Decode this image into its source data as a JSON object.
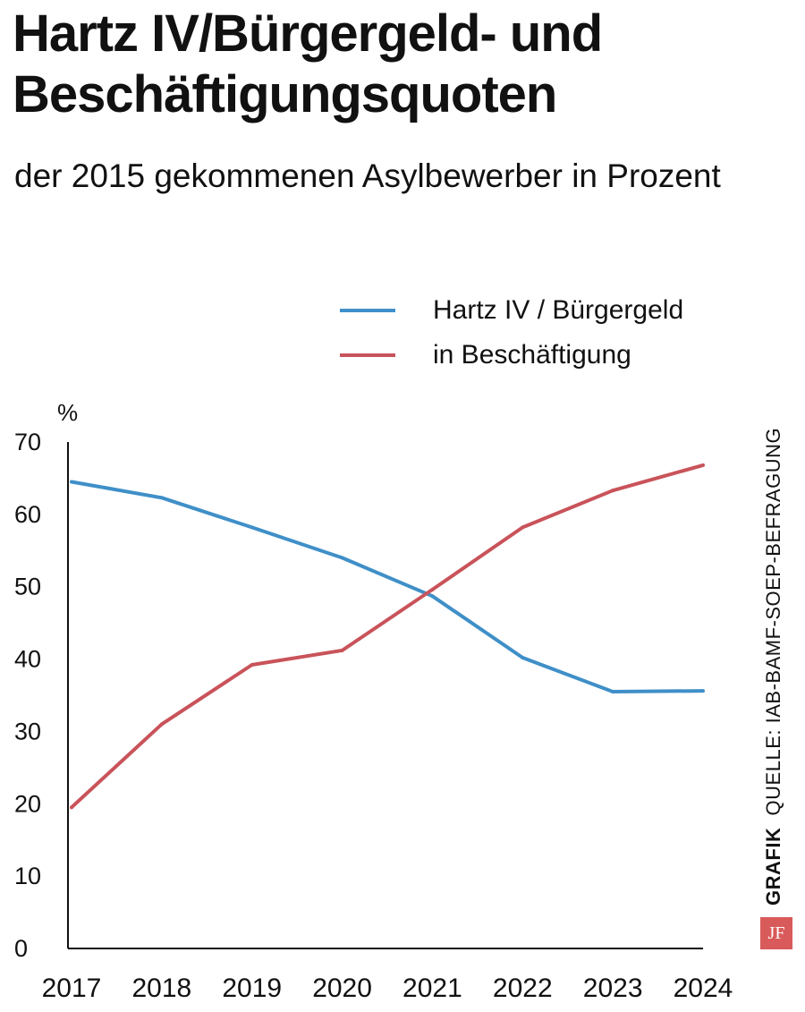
{
  "header": {
    "title": "Hartz IV/Bürgergeld- und Beschäftigungsquoten",
    "subtitle": "der 2015 gekommenen Asylbewerber in Prozent"
  },
  "legend": [
    {
      "label": "Hartz IV / Bürgergeld",
      "color": "#3f8fc8"
    },
    {
      "label": "in Beschäftigung",
      "color": "#c9535a"
    }
  ],
  "chart_data": {
    "type": "line",
    "title": "Hartz IV/Bürgergeld- und Beschäftigungsquoten",
    "subtitle": "der 2015 gekommenen Asylbewerber in Prozent",
    "x": [
      "2017",
      "2018",
      "2019",
      "2020",
      "2021",
      "2022",
      "2023",
      "2024"
    ],
    "yunit": "%",
    "ylim": [
      0,
      70
    ],
    "yticks": [
      0,
      10,
      20,
      30,
      40,
      50,
      60,
      70
    ],
    "grid": false,
    "legend_position": "top-right",
    "series": [
      {
        "name": "Hartz IV / Bürgergeld",
        "color": "#3f8fc8",
        "values": [
          64.5,
          62.3,
          58.2,
          54.0,
          48.7,
          40.2,
          35.5,
          35.6
        ]
      },
      {
        "name": "in Beschäftigung",
        "color": "#c9535a",
        "values": [
          19.5,
          31.0,
          39.2,
          41.2,
          49.6,
          58.2,
          63.3,
          66.8
        ]
      }
    ]
  },
  "source": {
    "label": "GRAFIK",
    "text": "QUELLE: IAB-BAMF-SOEP-BEFRAGUNG",
    "logo": "JF"
  }
}
